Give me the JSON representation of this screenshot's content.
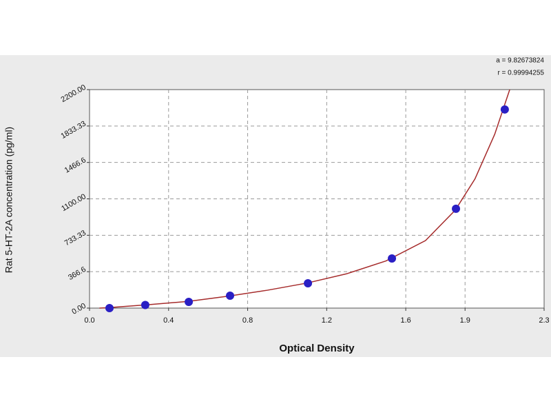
{
  "chart_data": {
    "type": "scatter",
    "xlabel": "Optical Density",
    "ylabel": "Rat 5-HT-2A concentration (pg/ml)",
    "annotations": [
      "a = 9.82673824",
      "r = 0.99994255"
    ],
    "series": [
      {
        "color": "#2a1fc4",
        "x": [
          0.101,
          0.282,
          0.502,
          0.711,
          1.105,
          1.53,
          1.854,
          2.101
        ],
        "values": [
          0,
          31.2,
          62.5,
          125,
          250,
          500,
          1000,
          2000
        ]
      }
    ],
    "fit_curve": {
      "color": "#a52a2a",
      "x": [
        0.05,
        0.1,
        0.3,
        0.5,
        0.7,
        0.9,
        1.1,
        1.3,
        1.5,
        1.7,
        1.85,
        1.95,
        2.05,
        2.126
      ],
      "values": [
        0,
        5,
        35,
        68,
        120,
        180,
        252,
        345,
        475,
        680,
        985,
        1300,
        1750,
        2200
      ]
    },
    "xlim": [
      0,
      2.3
    ],
    "xticks": [
      {
        "value": 0,
        "label": "0.0"
      },
      0.4,
      0.8,
      1.2,
      1.6,
      1.9,
      2.3
    ],
    "ylim": [
      0,
      2200
    ],
    "yticks": [
      {
        "value": 0,
        "label": "0.00"
      },
      366.6,
      733.33,
      {
        "value": 1100,
        "label": "1100.00"
      },
      1466.6,
      1833.33,
      {
        "value": 2200,
        "label": "2200.00"
      }
    ],
    "grid": true
  }
}
